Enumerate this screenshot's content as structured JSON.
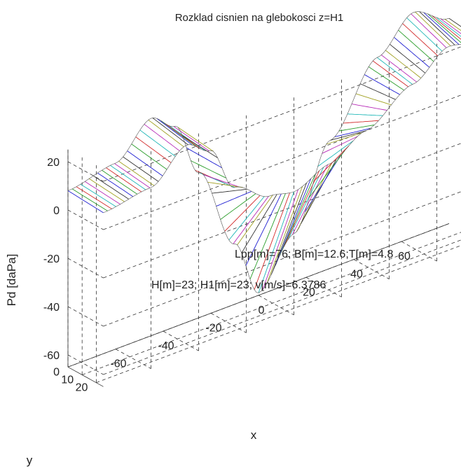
{
  "chart_data": {
    "type": "surface",
    "title": "Rozklad cisnien na glebokosci z=H1",
    "xlabel": "x",
    "ylabel": "y",
    "zlabel": "Pd [daPa]",
    "xlim": [
      -80,
      80
    ],
    "ylim": [
      0,
      25
    ],
    "zlim": [
      -65,
      25
    ],
    "x_ticks": [
      "-60",
      "-40",
      "-20",
      "0",
      "20",
      "40",
      "60"
    ],
    "y_ticks": [
      "0",
      "10",
      "20"
    ],
    "z_ticks": [
      "20",
      "0",
      "-20",
      "-40",
      "-60"
    ],
    "grid": true,
    "annotations": [
      "Lpp[m]=76; B[m]=12.6;T[m]=4.8",
      "H[m]=23; H1[m]=23; v[m/s]=6.3786"
    ],
    "profile": {
      "x": [
        -80,
        -60,
        -45,
        -35,
        -25,
        -10,
        0,
        15,
        30,
        50,
        65,
        80
      ],
      "pd_y0": [
        8,
        12,
        25,
        18,
        -5,
        -40,
        -64,
        -45,
        -12,
        15,
        28,
        20
      ],
      "pd_y25": [
        7,
        10,
        22,
        16,
        -3,
        -12,
        -14,
        -8,
        0,
        12,
        22,
        18
      ]
    },
    "line_colors": [
      "#1f1fd2",
      "#2a9d2a",
      "#d22a2a",
      "#1fb7b7",
      "#b72ab7",
      "#a0a020",
      "#333333"
    ]
  }
}
